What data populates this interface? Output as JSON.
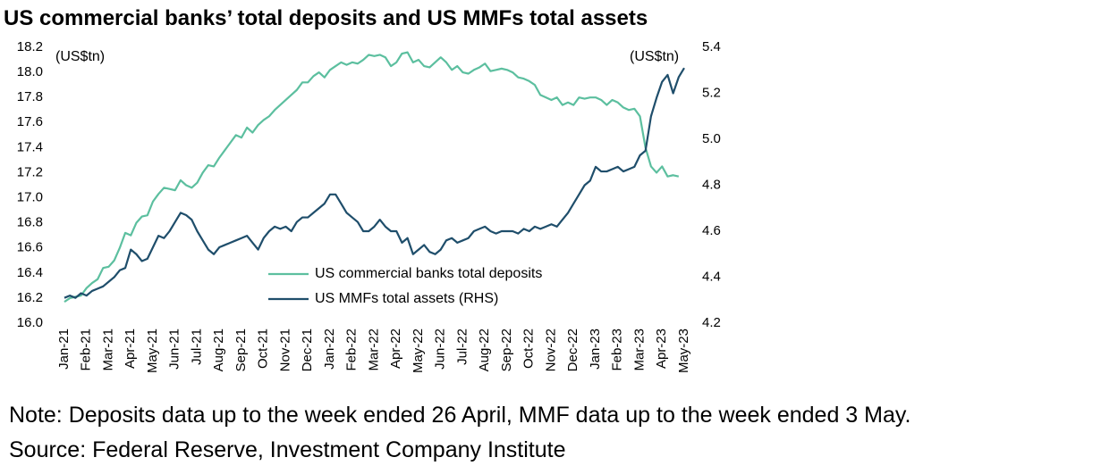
{
  "chart_data": {
    "type": "line",
    "title": "US commercial banks’ total deposits and US MMFs total assets",
    "y_unit_label": "(US$tn)",
    "y2_unit_label": "(US$tn)",
    "note": "Note: Deposits data up to the week ended 26 April, MMF data up to the week ended 3 May.",
    "source": "Source: Federal Reserve, Investment Company Institute",
    "categories": [
      "Jan-21",
      null,
      null,
      null,
      "Feb-21",
      null,
      null,
      null,
      "Mar-21",
      null,
      null,
      null,
      "Apr-21",
      null,
      null,
      null,
      "May-21",
      null,
      null,
      null,
      "Jun-21",
      null,
      null,
      null,
      "Jul-21",
      null,
      null,
      null,
      "Aug-21",
      null,
      null,
      null,
      "Sep-21",
      null,
      null,
      null,
      "Oct-21",
      null,
      null,
      null,
      "Nov-21",
      null,
      null,
      null,
      "Dec-21",
      null,
      null,
      null,
      "Jan-22",
      null,
      null,
      null,
      "Feb-22",
      null,
      null,
      null,
      "Mar-22",
      null,
      null,
      null,
      "Apr-22",
      null,
      null,
      null,
      "May-22",
      null,
      null,
      null,
      "Jun-22",
      null,
      null,
      null,
      "Jul-22",
      null,
      null,
      null,
      "Aug-22",
      null,
      null,
      null,
      "Sep-22",
      null,
      null,
      null,
      "Oct-22",
      null,
      null,
      null,
      "Nov-22",
      null,
      null,
      null,
      "Dec-22",
      null,
      null,
      null,
      "Jan-23",
      null,
      null,
      null,
      "Feb-23",
      null,
      null,
      null,
      "Mar-23",
      null,
      null,
      null,
      "Apr-23",
      null,
      null,
      null,
      "May-23"
    ],
    "series": [
      {
        "name": "US commercial banks total deposits",
        "color": "#5cbf9f",
        "axis": "y",
        "values": [
          16.17,
          16.2,
          16.21,
          16.22,
          16.28,
          16.32,
          16.35,
          16.44,
          16.45,
          16.5,
          16.6,
          16.72,
          16.7,
          16.8,
          16.85,
          16.86,
          16.97,
          17.03,
          17.08,
          17.07,
          17.06,
          17.14,
          17.1,
          17.08,
          17.12,
          17.2,
          17.26,
          17.25,
          17.32,
          17.38,
          17.44,
          17.5,
          17.48,
          17.56,
          17.52,
          17.58,
          17.62,
          17.65,
          17.7,
          17.74,
          17.78,
          17.82,
          17.86,
          17.92,
          17.92,
          17.97,
          18.0,
          17.96,
          18.02,
          18.05,
          18.08,
          18.06,
          18.08,
          18.07,
          18.1,
          18.14,
          18.13,
          18.14,
          18.12,
          18.05,
          18.08,
          18.15,
          18.16,
          18.08,
          18.1,
          18.05,
          18.04,
          18.08,
          18.12,
          18.08,
          18.02,
          18.05,
          18.0,
          17.99,
          18.02,
          18.04,
          18.07,
          18.01,
          18.02,
          18.03,
          18.02,
          18.0,
          17.96,
          17.95,
          17.93,
          17.9,
          17.82,
          17.8,
          17.78,
          17.8,
          17.74,
          17.76,
          17.74,
          17.8,
          17.79,
          17.8,
          17.8,
          17.78,
          17.74,
          17.78,
          17.76,
          17.72,
          17.7,
          17.71,
          17.65,
          17.4,
          17.25,
          17.2,
          17.25,
          17.17,
          17.18,
          17.17,
          null
        ]
      },
      {
        "name": "US MMFs total assets (RHS)",
        "color": "#1f4e6b",
        "axis": "y2",
        "values": [
          4.31,
          4.32,
          4.31,
          4.33,
          4.32,
          4.34,
          4.35,
          4.36,
          4.38,
          4.4,
          4.43,
          4.44,
          4.52,
          4.5,
          4.47,
          4.48,
          4.53,
          4.58,
          4.57,
          4.6,
          4.64,
          4.68,
          4.67,
          4.65,
          4.6,
          4.56,
          4.52,
          4.5,
          4.53,
          4.54,
          4.55,
          4.56,
          4.57,
          4.58,
          4.55,
          4.52,
          4.57,
          4.6,
          4.62,
          4.61,
          4.62,
          4.6,
          4.64,
          4.66,
          4.66,
          4.68,
          4.7,
          4.72,
          4.76,
          4.76,
          4.72,
          4.68,
          4.66,
          4.64,
          4.6,
          4.6,
          4.62,
          4.65,
          4.62,
          4.6,
          4.6,
          4.55,
          4.57,
          4.5,
          4.52,
          4.54,
          4.51,
          4.5,
          4.52,
          4.56,
          4.57,
          4.55,
          4.56,
          4.57,
          4.6,
          4.61,
          4.62,
          4.6,
          4.59,
          4.6,
          4.6,
          4.6,
          4.59,
          4.61,
          4.6,
          4.62,
          4.61,
          4.62,
          4.63,
          4.62,
          4.65,
          4.68,
          4.72,
          4.76,
          4.8,
          4.82,
          4.88,
          4.86,
          4.86,
          4.87,
          4.88,
          4.86,
          4.87,
          4.88,
          4.93,
          4.95,
          5.1,
          5.18,
          5.25,
          5.28,
          5.2,
          5.27,
          5.31
        ]
      }
    ],
    "ylim": [
      16.0,
      18.2
    ],
    "yticks": [
      {
        "value": 16.0,
        "label": "16.0"
      },
      16.2,
      16.4,
      16.6,
      16.8,
      {
        "value": 17.0,
        "label": "17.0"
      },
      17.2,
      17.4,
      17.6,
      17.8,
      {
        "value": 18.0,
        "label": "18.0"
      },
      18.2
    ],
    "y2lim": [
      4.2,
      5.4
    ],
    "y2ticks": [
      4.2,
      4.4,
      4.6,
      4.8,
      {
        "value": 5.0,
        "label": "5.0"
      },
      5.2,
      5.4
    ]
  }
}
